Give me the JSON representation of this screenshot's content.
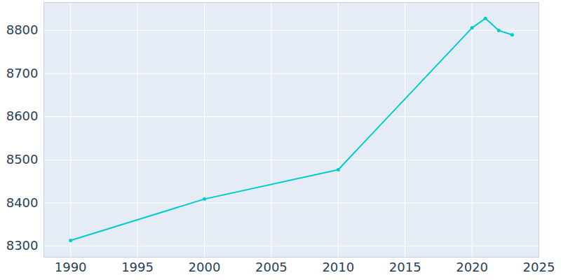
{
  "chart_data": {
    "type": "line",
    "x": [
      1990,
      2000,
      2010,
      2020,
      2021,
      2022,
      2023
    ],
    "values": [
      8313,
      8409,
      8477,
      8806,
      8828,
      8800,
      8790
    ],
    "color": "#00cccc",
    "marker": "circle",
    "line_style": "solid",
    "xlim": [
      1988,
      2025
    ],
    "xticks": [
      1990,
      1995,
      2000,
      2005,
      2010,
      2015,
      2020,
      2025
    ],
    "ylim": [
      8274,
      8865
    ],
    "yticks": [
      8300,
      8400,
      8500,
      8600,
      8700,
      8800
    ],
    "grid": true
  }
}
